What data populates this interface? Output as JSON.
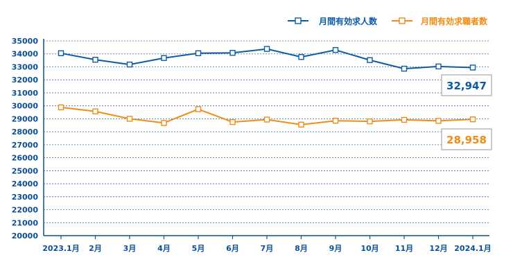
{
  "chart_data": {
    "type": "line",
    "categories": [
      "2023.1月",
      "2月",
      "3月",
      "4月",
      "5月",
      "6月",
      "7月",
      "8月",
      "9月",
      "10月",
      "11月",
      "12月",
      "2024.1月"
    ],
    "series": [
      {
        "name": "月間有効求人数",
        "color": "#0b5aa6",
        "values": [
          34050,
          33550,
          33180,
          33680,
          34050,
          34080,
          34380,
          33760,
          34300,
          33520,
          32860,
          33030,
          32947
        ],
        "callout": "32,947"
      },
      {
        "name": "月間有効求職者数",
        "color": "#f08c14",
        "values": [
          29880,
          29570,
          29000,
          28680,
          29740,
          28750,
          28940,
          28550,
          28850,
          28800,
          28920,
          28840,
          28958
        ],
        "callout": "28,958"
      }
    ],
    "ylim": [
      20000,
      35000
    ],
    "yticks": [
      20000,
      21000,
      22000,
      23000,
      24000,
      25000,
      26000,
      27000,
      28000,
      29000,
      30000,
      31000,
      32000,
      33000,
      34000,
      35000
    ],
    "grid": true,
    "legend": "top-right"
  }
}
